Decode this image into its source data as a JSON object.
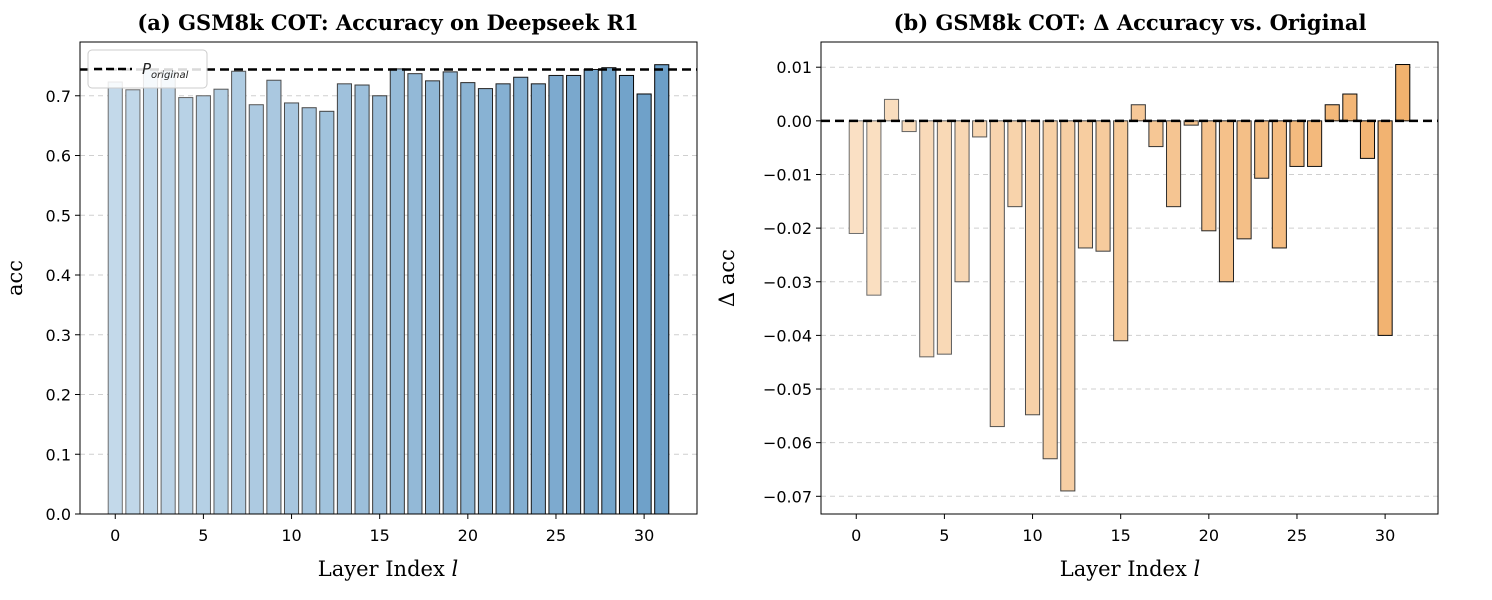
{
  "chart_data": [
    {
      "type": "bar",
      "title": "(a) GSM8k COT: Accuracy on Deepseek R1",
      "xlabel": "Layer Index",
      "xlabel_var": "l",
      "ylabel": "acc",
      "ylim": [
        0.0,
        0.79
      ],
      "xlim": [
        -2.0,
        33.0
      ],
      "yticks": [
        "0.0",
        "0.1",
        "0.2",
        "0.3",
        "0.4",
        "0.5",
        "0.6",
        "0.7"
      ],
      "ytick_values": [
        0.0,
        0.1,
        0.2,
        0.3,
        0.4,
        0.5,
        0.6,
        0.7
      ],
      "xticks": [
        "0",
        "5",
        "10",
        "15",
        "20",
        "25",
        "30"
      ],
      "xtick_values": [
        0,
        5,
        10,
        15,
        20,
        25,
        30
      ],
      "grid": "y dashed",
      "reference_line": {
        "value": 0.744,
        "label": "P",
        "label_sub": "original"
      },
      "legend_position": "top-left",
      "color_start": "#c3d9ea",
      "color_end": "#6c9fc8",
      "x": [
        0,
        1,
        2,
        3,
        4,
        5,
        6,
        7,
        8,
        9,
        10,
        11,
        12,
        13,
        14,
        15,
        16,
        17,
        18,
        19,
        20,
        21,
        22,
        23,
        24,
        25,
        26,
        27,
        28,
        29,
        30,
        31
      ],
      "values": [
        0.723,
        0.71,
        0.744,
        0.742,
        0.697,
        0.7,
        0.711,
        0.741,
        0.685,
        0.726,
        0.688,
        0.68,
        0.674,
        0.72,
        0.718,
        0.7,
        0.745,
        0.737,
        0.725,
        0.74,
        0.722,
        0.712,
        0.72,
        0.731,
        0.72,
        0.734,
        0.734,
        0.744,
        0.747,
        0.734,
        0.703,
        0.752
      ]
    },
    {
      "type": "bar",
      "title": "(b) GSM8k COT: Δ Accuracy vs. Original",
      "xlabel": "Layer Index",
      "xlabel_var": "l",
      "ylabel": "Δ acc",
      "ylim": [
        -0.0733,
        0.0147
      ],
      "xlim": [
        -2.0,
        33.0
      ],
      "yticks": [
        "0.01",
        "0.00",
        "−0.01",
        "−0.02",
        "−0.03",
        "−0.04",
        "−0.05",
        "−0.06",
        "−0.07"
      ],
      "ytick_values": [
        0.01,
        0.0,
        -0.01,
        -0.02,
        -0.03,
        -0.04,
        -0.05,
        -0.06,
        -0.07
      ],
      "xticks": [
        "0",
        "5",
        "10",
        "15",
        "20",
        "25",
        "30"
      ],
      "xtick_values": [
        0,
        5,
        10,
        15,
        20,
        25,
        30
      ],
      "grid": "y dashed",
      "reference_line": {
        "value": 0.0
      },
      "color_start": "#fae0c4",
      "color_end": "#f2b26e",
      "x": [
        0,
        1,
        2,
        3,
        4,
        5,
        6,
        7,
        8,
        9,
        10,
        11,
        12,
        13,
        14,
        15,
        16,
        17,
        18,
        19,
        20,
        21,
        22,
        23,
        24,
        25,
        26,
        27,
        28,
        29,
        30,
        31
      ],
      "values": [
        -0.021,
        -0.0325,
        0.004,
        -0.002,
        -0.044,
        -0.0435,
        -0.03,
        -0.003,
        -0.057,
        -0.016,
        -0.0548,
        -0.063,
        -0.069,
        -0.0237,
        -0.0243,
        -0.041,
        0.003,
        -0.0048,
        -0.016,
        -0.0008,
        -0.0205,
        -0.03,
        -0.022,
        -0.0107,
        -0.0237,
        -0.0085,
        -0.0085,
        0.003,
        0.005,
        -0.007,
        -0.04,
        0.0105
      ]
    }
  ]
}
